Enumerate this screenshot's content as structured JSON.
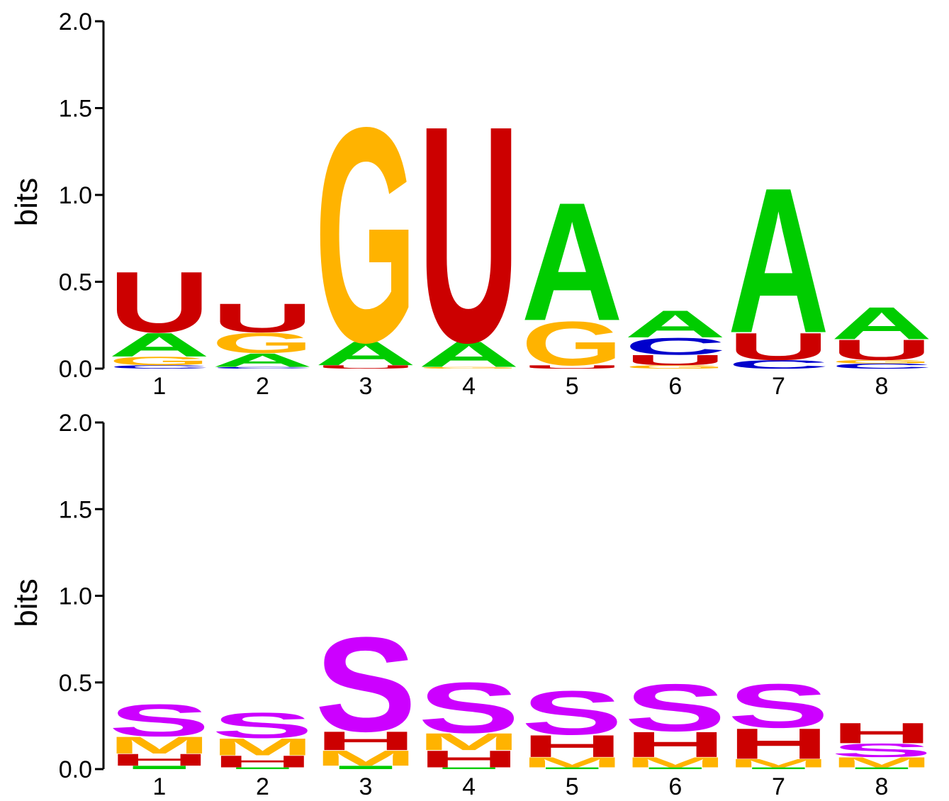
{
  "colors": {
    "A": "#00cc00",
    "C": "#0000cc",
    "G": "#ffb300",
    "U": "#cc0000",
    "S": "#cc00ff",
    "H": "#cc0000",
    "M": "#ffb300",
    "I": "#00cc00"
  },
  "chart_data": [
    {
      "type": "sequence-logo",
      "title": "",
      "xlabel": "",
      "ylabel": "bits",
      "ylim": [
        0,
        2.0
      ],
      "yticks": [
        "0.0",
        "0.5",
        "1.0",
        "1.5",
        "2.0"
      ],
      "categories": [
        "1",
        "2",
        "3",
        "4",
        "5",
        "6",
        "7",
        "8"
      ],
      "positions": [
        [
          {
            "letter": "C",
            "bits": 0.02
          },
          {
            "letter": "G",
            "bits": 0.05
          },
          {
            "letter": "A",
            "bits": 0.14
          },
          {
            "letter": "U",
            "bits": 0.36
          }
        ],
        [
          {
            "letter": "C",
            "bits": 0.01
          },
          {
            "letter": "A",
            "bits": 0.08
          },
          {
            "letter": "G",
            "bits": 0.12
          },
          {
            "letter": "U",
            "bits": 0.17
          }
        ],
        [
          {
            "letter": "U",
            "bits": 0.02
          },
          {
            "letter": "A",
            "bits": 0.14
          },
          {
            "letter": "G",
            "bits": 1.27
          }
        ],
        [
          {
            "letter": "G",
            "bits": 0.01
          },
          {
            "letter": "A",
            "bits": 0.15
          },
          {
            "letter": "U",
            "bits": 1.28
          }
        ],
        [
          {
            "letter": "U",
            "bits": 0.02
          },
          {
            "letter": "G",
            "bits": 0.26
          },
          {
            "letter": "A",
            "bits": 0.7
          }
        ],
        [
          {
            "letter": "G",
            "bits": 0.02
          },
          {
            "letter": "U",
            "bits": 0.06
          },
          {
            "letter": "C",
            "bits": 0.1
          },
          {
            "letter": "A",
            "bits": 0.16
          }
        ],
        [
          {
            "letter": "C",
            "bits": 0.05
          },
          {
            "letter": "U",
            "bits": 0.16
          },
          {
            "letter": "A",
            "bits": 0.86
          }
        ],
        [
          {
            "letter": "C",
            "bits": 0.03
          },
          {
            "letter": "G",
            "bits": 0.02
          },
          {
            "letter": "U",
            "bits": 0.12
          },
          {
            "letter": "A",
            "bits": 0.19
          }
        ]
      ]
    },
    {
      "type": "sequence-logo",
      "title": "",
      "xlabel": "",
      "ylabel": "bits",
      "ylim": [
        0,
        2.0
      ],
      "yticks": [
        "0.0",
        "0.5",
        "1.0",
        "1.5",
        "2.0"
      ],
      "categories": [
        "1",
        "2",
        "3",
        "4",
        "5",
        "6",
        "7",
        "8"
      ],
      "positions": [
        [
          {
            "letter": "I",
            "bits": 0.02
          },
          {
            "letter": "H",
            "bits": 0.07
          },
          {
            "letter": "M",
            "bits": 0.1
          },
          {
            "letter": "S",
            "bits": 0.19
          }
        ],
        [
          {
            "letter": "I",
            "bits": 0.01
          },
          {
            "letter": "H",
            "bits": 0.07
          },
          {
            "letter": "M",
            "bits": 0.1
          },
          {
            "letter": "S",
            "bits": 0.15
          }
        ],
        [
          {
            "letter": "I",
            "bits": 0.02
          },
          {
            "letter": "M",
            "bits": 0.09
          },
          {
            "letter": "H",
            "bits": 0.11
          },
          {
            "letter": "S",
            "bits": 0.56
          }
        ],
        [
          {
            "letter": "I",
            "bits": 0.01
          },
          {
            "letter": "H",
            "bits": 0.1
          },
          {
            "letter": "M",
            "bits": 0.1
          },
          {
            "letter": "S",
            "bits": 0.3
          }
        ],
        [
          {
            "letter": "I",
            "bits": 0.01
          },
          {
            "letter": "M",
            "bits": 0.06
          },
          {
            "letter": "H",
            "bits": 0.13
          },
          {
            "letter": "S",
            "bits": 0.26
          }
        ],
        [
          {
            "letter": "I",
            "bits": 0.01
          },
          {
            "letter": "M",
            "bits": 0.06
          },
          {
            "letter": "H",
            "bits": 0.15
          },
          {
            "letter": "S",
            "bits": 0.28
          }
        ],
        [
          {
            "letter": "I",
            "bits": 0.01
          },
          {
            "letter": "M",
            "bits": 0.05
          },
          {
            "letter": "H",
            "bits": 0.18
          },
          {
            "letter": "S",
            "bits": 0.26
          }
        ],
        [
          {
            "letter": "I",
            "bits": 0.01
          },
          {
            "letter": "M",
            "bits": 0.06
          },
          {
            "letter": "S",
            "bits": 0.08
          },
          {
            "letter": "H",
            "bits": 0.12
          }
        ]
      ]
    }
  ]
}
